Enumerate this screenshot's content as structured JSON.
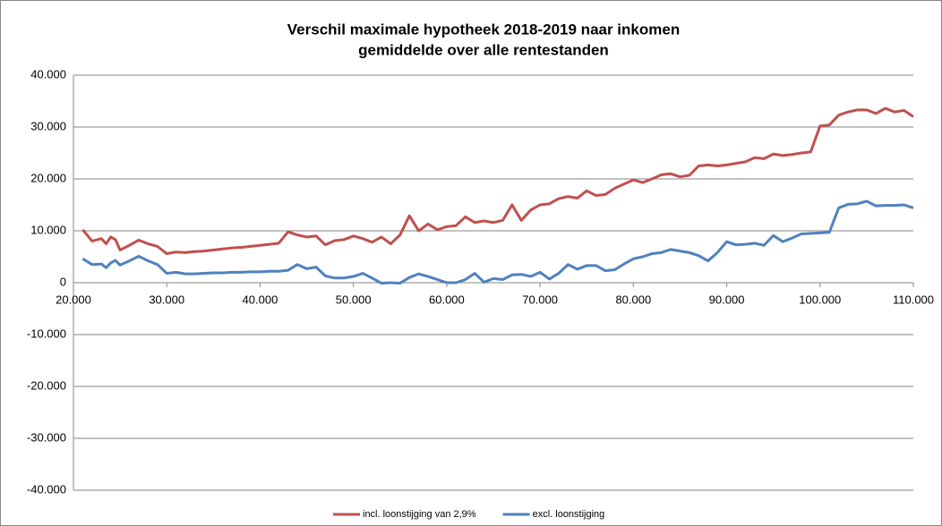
{
  "chart_data": {
    "type": "line",
    "title": "Verschil maximale hypotheek 2018-2019 naar inkomen",
    "subtitle": "gemiddelde over alle rentestanden",
    "x": [
      21000,
      22000,
      23000,
      23500,
      24000,
      24500,
      25000,
      26000,
      27000,
      28000,
      29000,
      30000,
      31000,
      32000,
      33000,
      34000,
      35000,
      36000,
      37000,
      38000,
      39000,
      40000,
      41000,
      42000,
      43000,
      44000,
      45000,
      46000,
      47000,
      48000,
      49000,
      50000,
      51000,
      52000,
      53000,
      54000,
      55000,
      56000,
      57000,
      58000,
      59000,
      60000,
      61000,
      62000,
      63000,
      64000,
      65000,
      66000,
      67000,
      68000,
      69000,
      70000,
      71000,
      72000,
      73000,
      74000,
      75000,
      76000,
      77000,
      78000,
      79000,
      80000,
      81000,
      82000,
      83000,
      84000,
      85000,
      86000,
      87000,
      88000,
      89000,
      90000,
      91000,
      92000,
      93000,
      94000,
      95000,
      96000,
      97000,
      98000,
      99000,
      100000,
      101000,
      102000,
      103000,
      104000,
      105000,
      106000,
      107000,
      108000,
      109000,
      110000
    ],
    "series": [
      {
        "name": "incl. loonstijging van 2,9%",
        "color": "#c0504d",
        "values": [
          10200,
          8000,
          8500,
          7500,
          8800,
          8300,
          6300,
          7200,
          8200,
          7500,
          7000,
          5600,
          5900,
          5800,
          6000,
          6100,
          6300,
          6500,
          6700,
          6800,
          7000,
          7200,
          7400,
          7600,
          9800,
          9200,
          8800,
          9000,
          7300,
          8100,
          8300,
          9000,
          8500,
          7800,
          8800,
          7500,
          9200,
          12900,
          10000,
          11300,
          10200,
          10800,
          11000,
          12700,
          11600,
          11900,
          11600,
          12000,
          15000,
          12000,
          14000,
          15000,
          15200,
          16200,
          16600,
          16300,
          17700,
          16800,
          17000,
          18200,
          19000,
          19800,
          19300,
          20000,
          20800,
          21000,
          20400,
          20700,
          22500,
          22700,
          22500,
          22700,
          23000,
          23300,
          24100,
          23900,
          24800,
          24500,
          24700,
          25000,
          25200,
          30200,
          30400,
          32300,
          32900,
          33300,
          33300,
          32600,
          33600,
          32900,
          33200,
          32000
        ]
      },
      {
        "name": "excl. loonstijging",
        "color": "#4f81bd",
        "values": [
          4600,
          3500,
          3600,
          2900,
          3800,
          4300,
          3400,
          4200,
          5100,
          4200,
          3500,
          1800,
          2000,
          1700,
          1700,
          1800,
          1900,
          1900,
          2000,
          2000,
          2100,
          2100,
          2200,
          2200,
          2400,
          3500,
          2700,
          3000,
          1300,
          900,
          900,
          1200,
          1800,
          900,
          -100,
          0,
          -100,
          1000,
          1700,
          1200,
          600,
          0,
          0,
          600,
          1800,
          100,
          800,
          600,
          1500,
          1600,
          1200,
          2000,
          700,
          1800,
          3500,
          2600,
          3300,
          3300,
          2300,
          2500,
          3600,
          4600,
          5000,
          5600,
          5800,
          6400,
          6100,
          5800,
          5200,
          4200,
          5800,
          7900,
          7300,
          7400,
          7600,
          7200,
          9100,
          7900,
          8600,
          9400,
          9500,
          9600,
          9700,
          14400,
          15100,
          15200,
          15700,
          14800,
          14900,
          14900,
          15000,
          14400
        ]
      }
    ],
    "xlim": [
      20000,
      110000
    ],
    "xticks": [
      {
        "value": 20000,
        "label": "20.000"
      },
      {
        "value": 30000,
        "label": "30.000"
      },
      {
        "value": 40000,
        "label": "40.000"
      },
      {
        "value": 50000,
        "label": "50.000"
      },
      {
        "value": 60000,
        "label": "60.000"
      },
      {
        "value": 70000,
        "label": "70.000"
      },
      {
        "value": 80000,
        "label": "80.000"
      },
      {
        "value": 90000,
        "label": "90.000"
      },
      {
        "value": 100000,
        "label": "100.000"
      },
      {
        "value": 110000,
        "label": "110.000"
      }
    ],
    "ylim": [
      -40000,
      40000
    ],
    "yticks": [
      {
        "value": -40000,
        "label": "-40.000"
      },
      {
        "value": -30000,
        "label": "-30.000"
      },
      {
        "value": -20000,
        "label": "-20.000"
      },
      {
        "value": -10000,
        "label": "-10.000"
      },
      0,
      {
        "value": 10000,
        "label": "10.000"
      },
      {
        "value": 20000,
        "label": "20.000"
      },
      {
        "value": 30000,
        "label": "30.000"
      },
      {
        "value": 40000,
        "label": "40.000"
      }
    ],
    "grid": true,
    "legend": "bottom"
  }
}
